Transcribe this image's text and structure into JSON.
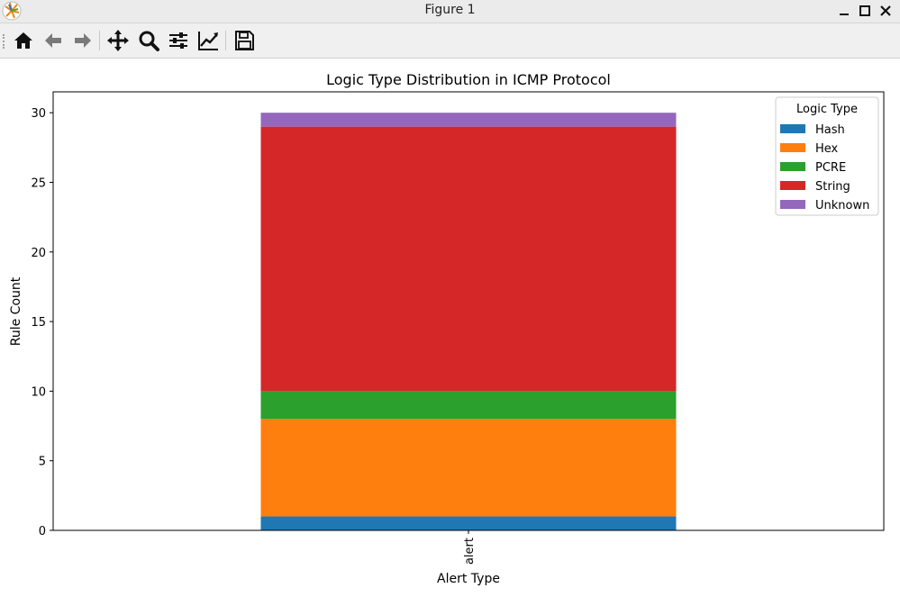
{
  "window": {
    "title": "Figure 1"
  },
  "toolbar": {
    "tools": [
      {
        "icon": "home-icon"
      },
      {
        "icon": "back-arrow-icon"
      },
      {
        "icon": "forward-arrow-icon"
      },
      {
        "icon": "pan-icon"
      },
      {
        "icon": "zoom-icon"
      },
      {
        "icon": "configure-subplots-icon"
      },
      {
        "icon": "edit-axes-icon"
      },
      {
        "icon": "save-icon"
      }
    ]
  },
  "chart_data": {
    "type": "bar",
    "stacked": true,
    "title": "Logic Type Distribution in ICMP Protocol",
    "xlabel": "Alert Type",
    "ylabel": "Rule Count",
    "categories": [
      "alert"
    ],
    "ylim": [
      0,
      31.5
    ],
    "yticks": [
      0,
      5,
      10,
      15,
      20,
      25,
      30
    ],
    "grid": false,
    "legend": {
      "title": "Logic Type",
      "placement": "top-right"
    },
    "series": [
      {
        "name": "Hash",
        "values": [
          1
        ],
        "color": "#1f77b4"
      },
      {
        "name": "Hex",
        "values": [
          7
        ],
        "color": "#ff7f0e"
      },
      {
        "name": "PCRE",
        "values": [
          2
        ],
        "color": "#2ca02c"
      },
      {
        "name": "String",
        "values": [
          19
        ],
        "color": "#d62728"
      },
      {
        "name": "Unknown",
        "values": [
          1
        ],
        "color": "#9467bd"
      }
    ]
  }
}
